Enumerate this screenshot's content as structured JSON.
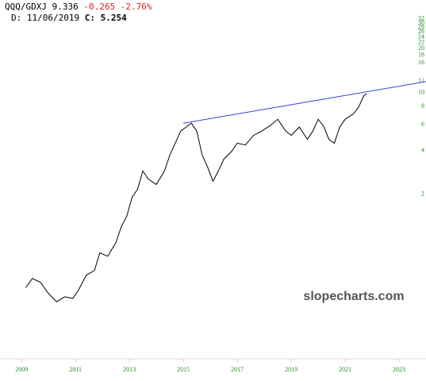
{
  "chart_data": {
    "type": "line",
    "header": {
      "symbol": "QQQ/GDXJ",
      "last": "9.336",
      "change": "-0.265",
      "change_pct": "-2.76%",
      "date_label": "D:",
      "date": "11/06/2019",
      "close_label": "C:",
      "close": "5.254"
    },
    "watermark": "slopecharts.com",
    "x": [
      2009.15,
      2009.4,
      2009.7,
      2010.0,
      2010.3,
      2010.6,
      2010.9,
      2011.1,
      2011.4,
      2011.7,
      2011.9,
      2012.2,
      2012.5,
      2012.7,
      2012.9,
      2013.1,
      2013.3,
      2013.5,
      2013.7,
      2014.0,
      2014.3,
      2014.5,
      2014.7,
      2014.9,
      2015.1,
      2015.3,
      2015.5,
      2015.7,
      2015.9,
      2016.1,
      2016.3,
      2016.5,
      2016.8,
      2017.0,
      2017.3,
      2017.6,
      2017.9,
      2018.2,
      2018.5,
      2018.8,
      2019.0,
      2019.3,
      2019.6,
      2019.8,
      2020.0,
      2020.2,
      2020.4,
      2020.6,
      2020.8,
      2021.0,
      2021.3,
      2021.5,
      2021.7,
      2021.8
    ],
    "values": [
      0.45,
      0.52,
      0.49,
      0.41,
      0.36,
      0.39,
      0.38,
      0.43,
      0.55,
      0.59,
      0.78,
      0.74,
      0.92,
      1.18,
      1.39,
      1.88,
      2.13,
      2.85,
      2.51,
      2.3,
      2.85,
      3.66,
      4.42,
      5.35,
      5.7,
      6.06,
      5.35,
      3.66,
      3.03,
      2.42,
      2.85,
      3.43,
      3.9,
      4.42,
      4.3,
      5.0,
      5.35,
      5.8,
      6.45,
      5.35,
      5.0,
      5.7,
      4.7,
      5.35,
      6.45,
      5.8,
      4.7,
      4.42,
      5.7,
      6.45,
      7.0,
      7.8,
      9.4,
      9.66
    ],
    "color": "#000000",
    "trendline": {
      "x": [
        2015.0,
        2024.0
      ],
      "values": [
        6.06,
        11.7
      ],
      "color": "#3344cc"
    },
    "log_y": true,
    "xlim": [
      2008.2,
      2024.0
    ],
    "xticks": [
      2009,
      2011,
      2013,
      2015,
      2017,
      2019,
      2021,
      2023
    ],
    "ylim": [
      0.15,
      37.5
    ],
    "yticks": [
      2,
      4,
      6,
      8,
      10,
      12,
      16,
      18,
      20,
      22,
      24,
      26,
      28,
      30,
      32
    ],
    "tick_color": "#2a8a2a"
  }
}
